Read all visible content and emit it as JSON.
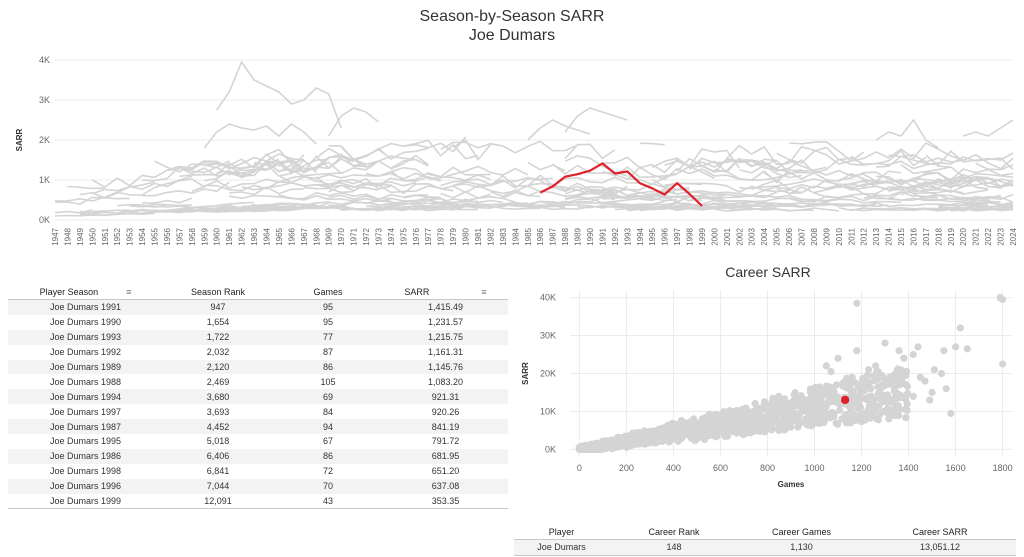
{
  "title": "Season-by-Season SARR",
  "subtitle": "Joe Dumars",
  "colors": {
    "highlight": "#e0202a",
    "background_series": "#d4d4d4",
    "grid": "#ebebeb",
    "axis_text": "#666666"
  },
  "chart_data": [
    {
      "type": "line",
      "ylabel": "SARR",
      "xlabel": "",
      "x_range": [
        1947,
        2024
      ],
      "ylim": [
        0,
        4000
      ],
      "y_ticks": [
        0,
        1000,
        2000,
        3000,
        4000
      ],
      "y_tick_labels": [
        "0K",
        "1K",
        "2K",
        "3K",
        "4K"
      ],
      "grid": true,
      "background_series_note": "Many gray lines for all other players",
      "highlight_series": {
        "name": "Joe Dumars",
        "x": [
          1986,
          1987,
          1988,
          1989,
          1990,
          1991,
          1992,
          1993,
          1994,
          1995,
          1996,
          1997,
          1998,
          1999
        ],
        "values": [
          681.95,
          841.19,
          1083.2,
          1145.76,
          1231.57,
          1415.49,
          1161.31,
          1215.75,
          921.31,
          791.72,
          637.08,
          920.26,
          651.2,
          353.35
        ]
      }
    },
    {
      "type": "scatter",
      "title": "Career SARR",
      "xlabel": "Games",
      "ylabel": "SARR",
      "xlim": [
        -40,
        1840
      ],
      "ylim": [
        -2000,
        42000
      ],
      "x_ticks": [
        0,
        200,
        400,
        600,
        800,
        1000,
        1200,
        1400,
        1600,
        1800
      ],
      "y_ticks": [
        0,
        10000,
        20000,
        30000,
        40000
      ],
      "y_tick_labels": [
        "0K",
        "10K",
        "20K",
        "30K",
        "40K"
      ],
      "grid": true,
      "highlight_point": {
        "name": "Joe Dumars",
        "x": 1130,
        "y": 13051.12
      }
    }
  ],
  "season_table": {
    "headers": [
      "Player Season",
      "Season Rank",
      "Games",
      "SARR"
    ],
    "rows": [
      [
        "Joe Dumars 1991",
        "947",
        "95",
        "1,415.49"
      ],
      [
        "Joe Dumars 1990",
        "1,654",
        "95",
        "1,231.57"
      ],
      [
        "Joe Dumars 1993",
        "1,722",
        "77",
        "1,215.75"
      ],
      [
        "Joe Dumars 1992",
        "2,032",
        "87",
        "1,161.31"
      ],
      [
        "Joe Dumars 1989",
        "2,120",
        "86",
        "1,145.76"
      ],
      [
        "Joe Dumars 1988",
        "2,469",
        "105",
        "1,083.20"
      ],
      [
        "Joe Dumars 1994",
        "3,680",
        "69",
        "921.31"
      ],
      [
        "Joe Dumars 1997",
        "3,693",
        "84",
        "920.26"
      ],
      [
        "Joe Dumars 1987",
        "4,452",
        "94",
        "841.19"
      ],
      [
        "Joe Dumars 1995",
        "5,018",
        "67",
        "791.72"
      ],
      [
        "Joe Dumars 1986",
        "6,406",
        "86",
        "681.95"
      ],
      [
        "Joe Dumars 1998",
        "6,841",
        "72",
        "651.20"
      ],
      [
        "Joe Dumars 1996",
        "7,044",
        "70",
        "637.08"
      ],
      [
        "Joe Dumars 1999",
        "12,091",
        "43",
        "353.35"
      ]
    ]
  },
  "career_table": {
    "headers": [
      "Player",
      "Career Rank",
      "Career Games",
      "Career SARR"
    ],
    "rows": [
      [
        "Joe Dumars",
        "148",
        "1,130",
        "13,051.12"
      ]
    ]
  },
  "icons": {
    "sort": "sort-icon"
  }
}
